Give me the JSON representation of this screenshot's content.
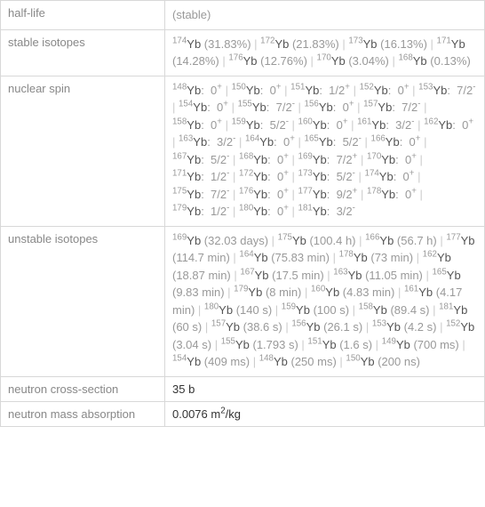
{
  "rows": {
    "halflife": {
      "label": "half-life",
      "value": "(stable)"
    },
    "stable": {
      "label": "stable isotopes",
      "items": [
        {
          "mass": "174",
          "el": "Yb",
          "abund": " (31.83%)"
        },
        {
          "mass": "172",
          "el": "Yb",
          "abund": " (21.83%)"
        },
        {
          "mass": "173",
          "el": "Yb",
          "abund": " (16.13%)"
        },
        {
          "mass": "171",
          "el": "Yb",
          "abund": " (14.28%)"
        },
        {
          "mass": "176",
          "el": "Yb",
          "abund": " (12.76%)"
        },
        {
          "mass": "170",
          "el": "Yb",
          "abund": " (3.04%)"
        },
        {
          "mass": "168",
          "el": "Yb",
          "abund": " (0.13%)"
        }
      ]
    },
    "spin": {
      "label": "nuclear spin",
      "items": [
        {
          "mass": "148",
          "el": "Yb",
          "spin": "0",
          "sign": "+"
        },
        {
          "mass": "150",
          "el": "Yb",
          "spin": "0",
          "sign": "+"
        },
        {
          "mass": "151",
          "el": "Yb",
          "spin": "1/2",
          "sign": "+"
        },
        {
          "mass": "152",
          "el": "Yb",
          "spin": "0",
          "sign": "+"
        },
        {
          "mass": "153",
          "el": "Yb",
          "spin": "7/2",
          "sign": "-"
        },
        {
          "mass": "154",
          "el": "Yb",
          "spin": "0",
          "sign": "+"
        },
        {
          "mass": "155",
          "el": "Yb",
          "spin": "7/2",
          "sign": "-"
        },
        {
          "mass": "156",
          "el": "Yb",
          "spin": "0",
          "sign": "+"
        },
        {
          "mass": "157",
          "el": "Yb",
          "spin": "7/2",
          "sign": "-"
        },
        {
          "mass": "158",
          "el": "Yb",
          "spin": "0",
          "sign": "+"
        },
        {
          "mass": "159",
          "el": "Yb",
          "spin": "5/2",
          "sign": "-"
        },
        {
          "mass": "160",
          "el": "Yb",
          "spin": "0",
          "sign": "+"
        },
        {
          "mass": "161",
          "el": "Yb",
          "spin": "3/2",
          "sign": "-"
        },
        {
          "mass": "162",
          "el": "Yb",
          "spin": "0",
          "sign": "+"
        },
        {
          "mass": "163",
          "el": "Yb",
          "spin": "3/2",
          "sign": "-"
        },
        {
          "mass": "164",
          "el": "Yb",
          "spin": "0",
          "sign": "+"
        },
        {
          "mass": "165",
          "el": "Yb",
          "spin": "5/2",
          "sign": "-"
        },
        {
          "mass": "166",
          "el": "Yb",
          "spin": "0",
          "sign": "+"
        },
        {
          "mass": "167",
          "el": "Yb",
          "spin": "5/2",
          "sign": "-"
        },
        {
          "mass": "168",
          "el": "Yb",
          "spin": "0",
          "sign": "+"
        },
        {
          "mass": "169",
          "el": "Yb",
          "spin": "7/2",
          "sign": "+"
        },
        {
          "mass": "170",
          "el": "Yb",
          "spin": "0",
          "sign": "+"
        },
        {
          "mass": "171",
          "el": "Yb",
          "spin": "1/2",
          "sign": "-"
        },
        {
          "mass": "172",
          "el": "Yb",
          "spin": "0",
          "sign": "+"
        },
        {
          "mass": "173",
          "el": "Yb",
          "spin": "5/2",
          "sign": "-"
        },
        {
          "mass": "174",
          "el": "Yb",
          "spin": "0",
          "sign": "+"
        },
        {
          "mass": "175",
          "el": "Yb",
          "spin": "7/2",
          "sign": "-"
        },
        {
          "mass": "176",
          "el": "Yb",
          "spin": "0",
          "sign": "+"
        },
        {
          "mass": "177",
          "el": "Yb",
          "spin": "9/2",
          "sign": "+"
        },
        {
          "mass": "178",
          "el": "Yb",
          "spin": "0",
          "sign": "+"
        },
        {
          "mass": "179",
          "el": "Yb",
          "spin": "1/2",
          "sign": "-"
        },
        {
          "mass": "180",
          "el": "Yb",
          "spin": "0",
          "sign": "+"
        },
        {
          "mass": "181",
          "el": "Yb",
          "spin": "3/2",
          "sign": "-"
        }
      ]
    },
    "unstable": {
      "label": "unstable isotopes",
      "items": [
        {
          "mass": "169",
          "el": "Yb",
          "hl": " (32.03 days)"
        },
        {
          "mass": "175",
          "el": "Yb",
          "hl": " (100.4 h)"
        },
        {
          "mass": "166",
          "el": "Yb",
          "hl": " (56.7 h)"
        },
        {
          "mass": "177",
          "el": "Yb",
          "hl": " (114.7 min)"
        },
        {
          "mass": "164",
          "el": "Yb",
          "hl": " (75.83 min)"
        },
        {
          "mass": "178",
          "el": "Yb",
          "hl": " (73 min)"
        },
        {
          "mass": "162",
          "el": "Yb",
          "hl": " (18.87 min)"
        },
        {
          "mass": "167",
          "el": "Yb",
          "hl": " (17.5 min)"
        },
        {
          "mass": "163",
          "el": "Yb",
          "hl": " (11.05 min)"
        },
        {
          "mass": "165",
          "el": "Yb",
          "hl": " (9.83 min)"
        },
        {
          "mass": "179",
          "el": "Yb",
          "hl": " (8 min)"
        },
        {
          "mass": "160",
          "el": "Yb",
          "hl": " (4.83 min)"
        },
        {
          "mass": "161",
          "el": "Yb",
          "hl": " (4.17 min)"
        },
        {
          "mass": "180",
          "el": "Yb",
          "hl": " (140 s)"
        },
        {
          "mass": "159",
          "el": "Yb",
          "hl": " (100 s)"
        },
        {
          "mass": "158",
          "el": "Yb",
          "hl": " (89.4 s)"
        },
        {
          "mass": "181",
          "el": "Yb",
          "hl": " (60 s)"
        },
        {
          "mass": "157",
          "el": "Yb",
          "hl": " (38.6 s)"
        },
        {
          "mass": "156",
          "el": "Yb",
          "hl": " (26.1 s)"
        },
        {
          "mass": "153",
          "el": "Yb",
          "hl": " (4.2 s)"
        },
        {
          "mass": "152",
          "el": "Yb",
          "hl": " (3.04 s)"
        },
        {
          "mass": "155",
          "el": "Yb",
          "hl": " (1.793 s)"
        },
        {
          "mass": "151",
          "el": "Yb",
          "hl": " (1.6 s)"
        },
        {
          "mass": "149",
          "el": "Yb",
          "hl": " (700 ms)"
        },
        {
          "mass": "154",
          "el": "Yb",
          "hl": " (409 ms)"
        },
        {
          "mass": "148",
          "el": "Yb",
          "hl": " (250 ms)"
        },
        {
          "mass": "150",
          "el": "Yb",
          "hl": " (200 ns)"
        }
      ]
    },
    "ncs": {
      "label": "neutron cross-section",
      "value": "35 b"
    },
    "nma": {
      "label": "neutron mass absorption",
      "value_prefix": "0.0076 m",
      "value_sup": "2",
      "value_suffix": "/kg"
    }
  },
  "separator": " | "
}
